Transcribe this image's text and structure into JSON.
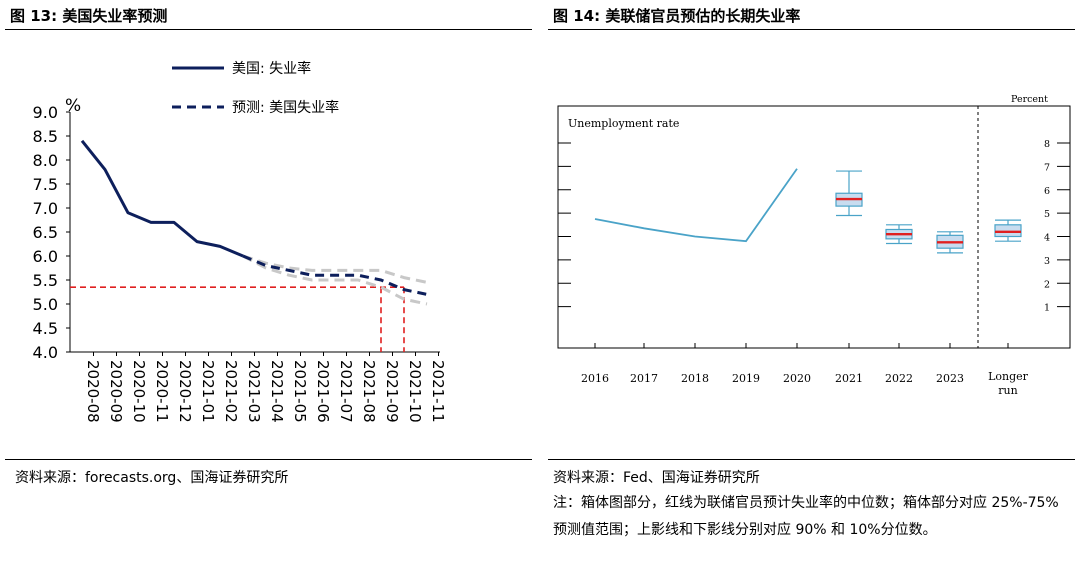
{
  "left": {
    "title": "图 13: 美国失业率预测",
    "source": "资料来源：forecasts.org、国海证券研究所"
  },
  "right": {
    "title": "图 14: 美联储官员预估的长期失业率",
    "source": "资料来源：Fed、国海证券研究所",
    "note": "注：箱体图部分，红线为联储官员预计失业率的中位数；箱体部分对应 25%-75%预测值范围；上影线和下影线分别对应 90% 和 10%分位数。"
  },
  "chart_data": [
    {
      "type": "line",
      "ylabel": "%",
      "ylim": [
        4.0,
        9.0
      ],
      "yticks": [
        "9.0",
        "8.5",
        "8.0",
        "7.5",
        "7.0",
        "6.5",
        "6.0",
        "5.5",
        "5.0",
        "4.5",
        "4.0"
      ],
      "categories": [
        "2020-08",
        "2020-09",
        "2020-10",
        "2020-11",
        "2020-12",
        "2021-01",
        "2021-02",
        "2021-03",
        "2021-04",
        "2021-05",
        "2021-06",
        "2021-07",
        "2021-08",
        "2021-09",
        "2021-10",
        "2021-11"
      ],
      "series": [
        {
          "name": "美国: 失业率",
          "color": "#0d1f5c",
          "style": "solid",
          "values": [
            8.4,
            7.8,
            6.9,
            6.7,
            6.7,
            6.3,
            6.2,
            6.0,
            null,
            null,
            null,
            null,
            null,
            null,
            null,
            null
          ]
        },
        {
          "name": "预测: 美国失业率",
          "color": "#0d1f5c",
          "style": "dashed",
          "values": [
            null,
            null,
            null,
            null,
            null,
            null,
            null,
            6.0,
            5.8,
            5.7,
            5.6,
            5.6,
            5.6,
            5.5,
            5.3,
            5.2
          ]
        },
        {
          "name": "",
          "color": "#c8c8c8",
          "style": "dashed",
          "values": [
            null,
            null,
            null,
            null,
            null,
            null,
            null,
            6.0,
            5.85,
            5.75,
            5.7,
            5.7,
            5.7,
            5.7,
            5.55,
            5.45
          ]
        },
        {
          "name": "",
          "color": "#c8c8c8",
          "style": "dashed",
          "values": [
            null,
            null,
            null,
            null,
            null,
            null,
            null,
            6.0,
            5.75,
            5.6,
            5.5,
            5.5,
            5.5,
            5.35,
            5.1,
            5.0
          ]
        }
      ],
      "reference_lines": {
        "color": "#e02020",
        "y": 5.35,
        "x_categories": [
          "2021-09",
          "2021-10"
        ]
      }
    },
    {
      "type": "line",
      "title": "Unemployment rate",
      "units": "Percent",
      "ylim": [
        0,
        8.5
      ],
      "yticks": [
        "8",
        "7",
        "6",
        "5",
        "4",
        "3",
        "2",
        "1"
      ],
      "categories": [
        "2016",
        "2017",
        "2018",
        "2019",
        "2020",
        "2021",
        "2022",
        "2023",
        "Longer run"
      ],
      "series": [
        {
          "name": "",
          "color": "#4aa3c8",
          "values": [
            4.75,
            4.35,
            4.0,
            3.8,
            6.9,
            null,
            null,
            null,
            null
          ]
        }
      ],
      "boxes": [
        {
          "category": "2021",
          "p10": 4.9,
          "p25": 5.3,
          "median": 5.6,
          "p75": 5.85,
          "p90": 6.8
        },
        {
          "category": "2022",
          "p10": 3.7,
          "p25": 3.9,
          "median": 4.1,
          "p75": 4.3,
          "p90": 4.5
        },
        {
          "category": "2023",
          "p10": 3.3,
          "p25": 3.5,
          "median": 3.75,
          "p75": 4.05,
          "p90": 4.2
        },
        {
          "category": "Longer run",
          "p10": 3.8,
          "p25": 4.0,
          "median": 4.2,
          "p75": 4.5,
          "p90": 4.7
        }
      ],
      "box_fill": "#c8dcef",
      "median_color": "#e02020"
    }
  ]
}
